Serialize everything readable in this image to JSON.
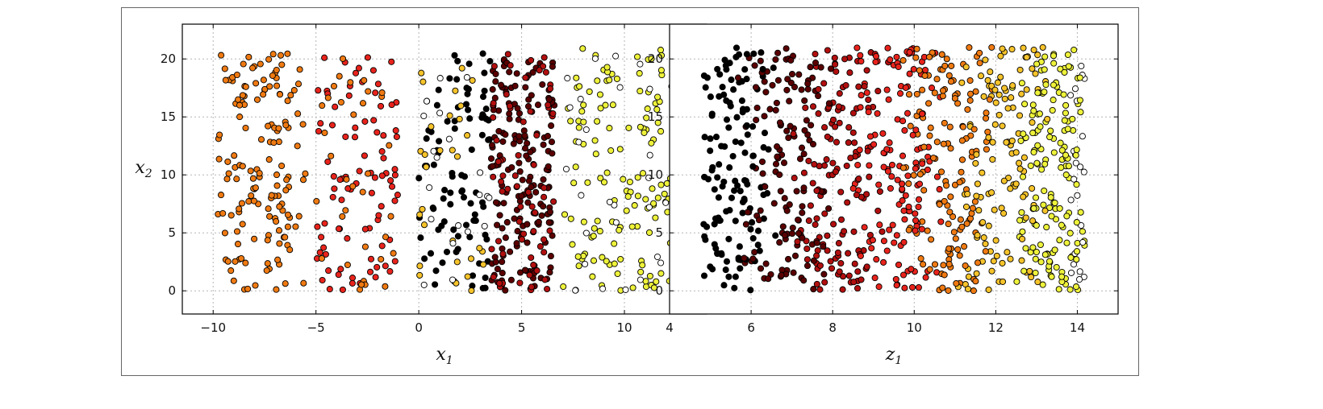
{
  "figure": {
    "caption_visible": false
  },
  "chart_data": [
    {
      "type": "scatter",
      "title": "",
      "xlabel": "x",
      "xlabel_sub": "1",
      "ylabel": "x",
      "ylabel_sub": "2",
      "xlim": [
        -11.5,
        14
      ],
      "ylim": [
        -2,
        23
      ],
      "xticks": [
        -10,
        -5,
        0,
        5,
        10
      ],
      "yticks": [
        0,
        5,
        10,
        15,
        20
      ],
      "grid": true,
      "colormap": "hot",
      "color_stops": [
        "#000000",
        "#5a0000",
        "#b20f0f",
        "#e8231c",
        "#f07a12",
        "#f6c32a",
        "#eef23a",
        "#ffffff"
      ],
      "points_description": "scattered points colored by class, roughly 1000 points",
      "clusters": [
        {
          "x_range": [
            -9.8,
            -5.5
          ],
          "y_range": [
            0,
            20.5
          ],
          "color": "#f07a12",
          "count": 150
        },
        {
          "x_range": [
            -5.0,
            -1.0
          ],
          "y_range": [
            0,
            20.5
          ],
          "color": "#e8231c",
          "count": 90
        },
        {
          "x_range": [
            -5.0,
            -1.0
          ],
          "y_range": [
            0,
            20.5
          ],
          "color": "#f07a12",
          "count": 35
        },
        {
          "x_range": [
            0.0,
            3.5
          ],
          "y_range": [
            0,
            20.5
          ],
          "color": "#000000",
          "count": 90
        },
        {
          "x_range": [
            0.0,
            3.5
          ],
          "y_range": [
            0,
            20.5
          ],
          "color": "#f6c32a",
          "count": 30
        },
        {
          "x_range": [
            0.0,
            3.5
          ],
          "y_range": [
            0,
            20.5
          ],
          "color": "#ffffff",
          "count": 20
        },
        {
          "x_range": [
            3.5,
            6.6
          ],
          "y_range": [
            0,
            20.5
          ],
          "color": "#5a0000",
          "count": 180
        },
        {
          "x_range": [
            3.5,
            6.6
          ],
          "y_range": [
            0,
            20.5
          ],
          "color": "#b20f0f",
          "count": 70
        },
        {
          "x_range": [
            7.0,
            12.8
          ],
          "y_range": [
            0,
            21
          ],
          "color": "#eef23a",
          "count": 150
        },
        {
          "x_range": [
            7.0,
            12.8
          ],
          "y_range": [
            0,
            21
          ],
          "color": "#ffffff",
          "count": 30
        }
      ]
    },
    {
      "type": "scatter",
      "title": "",
      "xlabel": "z",
      "xlabel_sub": "1",
      "ylabel": "",
      "xlim": [
        4,
        15
      ],
      "ylim": [
        -2,
        23
      ],
      "xticks": [
        4,
        6,
        8,
        10,
        12,
        14
      ],
      "yticks": [
        0,
        5,
        10,
        15,
        20
      ],
      "grid": true,
      "colormap": "hot",
      "color_stops": [
        "#000000",
        "#5a0000",
        "#b20f0f",
        "#e8231c",
        "#f07a12",
        "#f6c32a",
        "#eef23a",
        "#ffffff"
      ],
      "points_description": "colors vary continuously left-to-right from black to white",
      "gradient_x_range": [
        4.8,
        14.2
      ],
      "y_range": [
        0,
        21
      ],
      "count": 1000
    }
  ]
}
